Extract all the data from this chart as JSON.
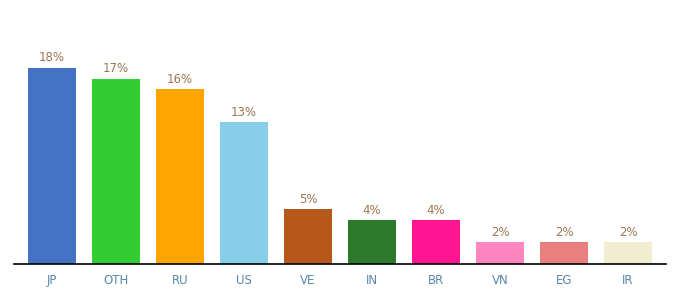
{
  "categories": [
    "JP",
    "OTH",
    "RU",
    "US",
    "VE",
    "IN",
    "BR",
    "VN",
    "EG",
    "IR"
  ],
  "values": [
    18,
    17,
    16,
    13,
    5,
    4,
    4,
    2,
    2,
    2
  ],
  "bar_colors": [
    "#4472C4",
    "#33CC33",
    "#FFA500",
    "#87CEEB",
    "#B5581A",
    "#2D7A2D",
    "#FF1493",
    "#FF85C0",
    "#E88080",
    "#F0EDD0"
  ],
  "ylim": [
    0,
    22
  ],
  "label_color": "#9B7653",
  "label_fontsize": 8.5,
  "tick_fontsize": 8.5,
  "tick_color": "#5588AA",
  "background_color": "#ffffff",
  "bar_width": 0.75
}
